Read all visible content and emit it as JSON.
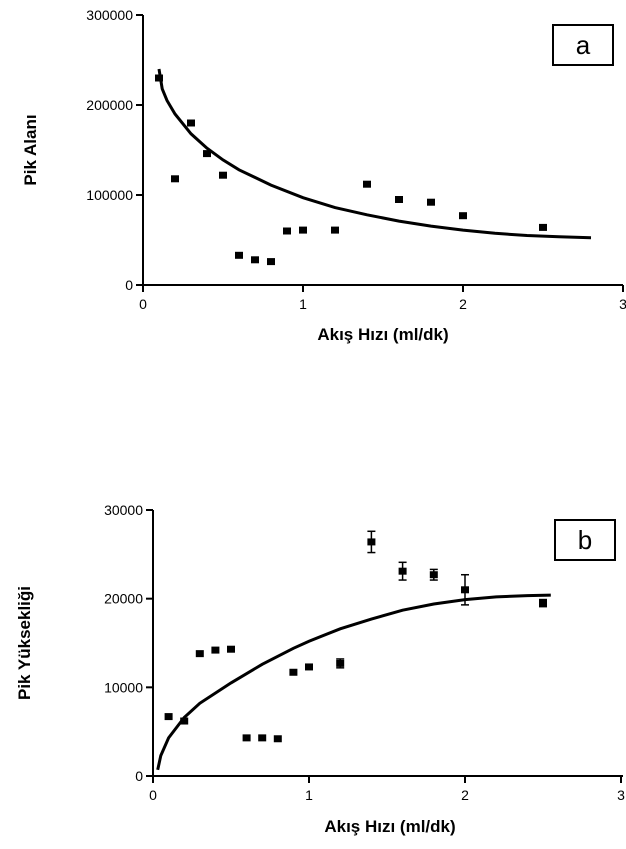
{
  "chart_data": [
    {
      "type": "scatter",
      "panel_label": "a",
      "xlabel": "Akış Hızı (ml/dk)",
      "ylabel": "Pik Alanı",
      "xlim": [
        0,
        3
      ],
      "ylim": [
        0,
        300000
      ],
      "xticks": [
        "0",
        "1",
        "2",
        "3"
      ],
      "yticks": [
        "0",
        "100000",
        "200000",
        "300000"
      ],
      "grid": false,
      "series": [
        {
          "marker": "square",
          "color": "#000000",
          "points": [
            {
              "x": 0.1,
              "y": 230000
            },
            {
              "x": 0.2,
              "y": 118000
            },
            {
              "x": 0.3,
              "y": 180000
            },
            {
              "x": 0.4,
              "y": 146000
            },
            {
              "x": 0.5,
              "y": 122000
            },
            {
              "x": 0.6,
              "y": 33000
            },
            {
              "x": 0.7,
              "y": 28000
            },
            {
              "x": 0.8,
              "y": 26000
            },
            {
              "x": 0.9,
              "y": 60000
            },
            {
              "x": 1.0,
              "y": 61000
            },
            {
              "x": 1.2,
              "y": 61000
            },
            {
              "x": 1.4,
              "y": 112000
            },
            {
              "x": 1.6,
              "y": 95000
            },
            {
              "x": 1.8,
              "y": 92000
            },
            {
              "x": 2.0,
              "y": 77000
            },
            {
              "x": 2.5,
              "y": 64000
            }
          ]
        }
      ],
      "fit": {
        "color": "#000000",
        "points": [
          {
            "x": 0.1,
            "y": 240000
          },
          {
            "x": 0.12,
            "y": 218000
          },
          {
            "x": 0.15,
            "y": 205000
          },
          {
            "x": 0.2,
            "y": 190000
          },
          {
            "x": 0.3,
            "y": 168000
          },
          {
            "x": 0.4,
            "y": 152000
          },
          {
            "x": 0.5,
            "y": 139000
          },
          {
            "x": 0.6,
            "y": 128000
          },
          {
            "x": 0.8,
            "y": 111000
          },
          {
            "x": 1.0,
            "y": 97000
          },
          {
            "x": 1.2,
            "y": 86000
          },
          {
            "x": 1.4,
            "y": 78000
          },
          {
            "x": 1.6,
            "y": 71000
          },
          {
            "x": 1.8,
            "y": 65500
          },
          {
            "x": 2.0,
            "y": 61000
          },
          {
            "x": 2.2,
            "y": 57500
          },
          {
            "x": 2.4,
            "y": 55000
          },
          {
            "x": 2.6,
            "y": 53500
          },
          {
            "x": 2.8,
            "y": 52500
          }
        ]
      }
    },
    {
      "type": "scatter",
      "panel_label": "b",
      "xlabel": "Akış Hızı (ml/dk)",
      "ylabel": "Pik Yüksekliği",
      "xlim": [
        0,
        3
      ],
      "ylim": [
        0,
        30000
      ],
      "xticks": [
        "0",
        "1",
        "2",
        "3"
      ],
      "yticks": [
        "0",
        "10000",
        "20000",
        "30000"
      ],
      "grid": false,
      "series": [
        {
          "marker": "square",
          "color": "#000000",
          "points": [
            {
              "x": 0.1,
              "y": 6700
            },
            {
              "x": 0.2,
              "y": 6200
            },
            {
              "x": 0.3,
              "y": 13800
            },
            {
              "x": 0.4,
              "y": 14200
            },
            {
              "x": 0.5,
              "y": 14300
            },
            {
              "x": 0.6,
              "y": 4300
            },
            {
              "x": 0.7,
              "y": 4300
            },
            {
              "x": 0.8,
              "y": 4200
            },
            {
              "x": 0.9,
              "y": 11700
            },
            {
              "x": 1.0,
              "y": 12300
            },
            {
              "x": 1.2,
              "y": 12700,
              "err": 500
            },
            {
              "x": 1.4,
              "y": 26400,
              "err": 1200
            },
            {
              "x": 1.6,
              "y": 23100,
              "err": 1000
            },
            {
              "x": 1.8,
              "y": 22700,
              "err": 600
            },
            {
              "x": 2.0,
              "y": 21000,
              "err": 1700
            },
            {
              "x": 2.5,
              "y": 19500,
              "err": 400
            }
          ]
        }
      ],
      "fit": {
        "color": "#000000",
        "points": [
          {
            "x": 0.03,
            "y": 700
          },
          {
            "x": 0.05,
            "y": 2300
          },
          {
            "x": 0.1,
            "y": 4300
          },
          {
            "x": 0.2,
            "y": 6600
          },
          {
            "x": 0.3,
            "y": 8200
          },
          {
            "x": 0.5,
            "y": 10500
          },
          {
            "x": 0.7,
            "y": 12600
          },
          {
            "x": 0.9,
            "y": 14400
          },
          {
            "x": 1.0,
            "y": 15200
          },
          {
            "x": 1.2,
            "y": 16600
          },
          {
            "x": 1.4,
            "y": 17700
          },
          {
            "x": 1.6,
            "y": 18700
          },
          {
            "x": 1.8,
            "y": 19400
          },
          {
            "x": 2.0,
            "y": 19900
          },
          {
            "x": 2.2,
            "y": 20200
          },
          {
            "x": 2.4,
            "y": 20350
          },
          {
            "x": 2.55,
            "y": 20400
          }
        ]
      }
    }
  ]
}
